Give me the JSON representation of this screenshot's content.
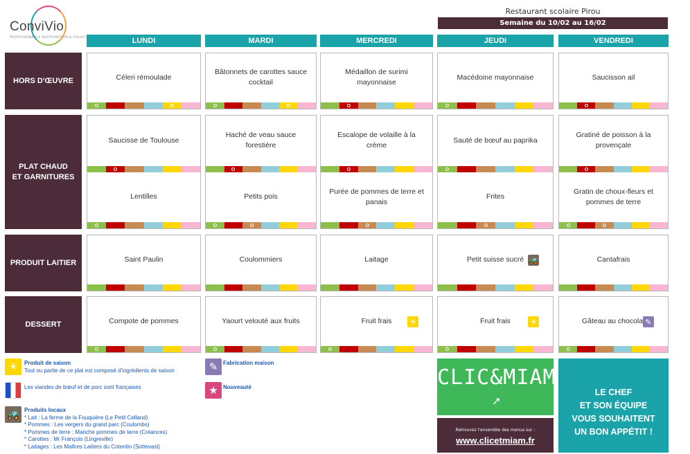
{
  "logo": {
    "name": "ConviVio",
    "tagline": "PROFESSIONNELS RESTAURATION & COLLECTIVITÉ"
  },
  "header": {
    "restaurant": "Restaurant scolaire Pirou",
    "week": "Semaine du 10/02 au 16/02"
  },
  "days": [
    "LUNDI",
    "MARDI",
    "MERCREDI",
    "JEUDI",
    "VENDREDI"
  ],
  "categories": {
    "hors_doeuvre": "HORS D'ŒUVRE",
    "plat_line1": "PLAT CHAUD",
    "plat_line2": "ET GARNITURES",
    "produit_laitier": "PRODUIT LAITIER",
    "dessert": "DESSERT"
  },
  "menu": {
    "hors_doeuvre": [
      "Céleri rémoulade",
      "Bâtonnets de carottes sauce cocktail",
      "Médaillon de surimi mayonnaise",
      "Macédoine mayonnaise",
      "Saucisson ail"
    ],
    "plat": [
      "Saucisse de Toulouse",
      "Haché de veau sauce forestière",
      "Escalope de volaille à la crème",
      "Sauté de bœuf au paprika",
      "Gratiné de poisson à la provençale"
    ],
    "garniture": [
      "Lentilles",
      "Petits pois",
      "Purée de pommes de terre et panais",
      "Frites",
      "Gratin de choux-fleurs et pommes de terre"
    ],
    "laitier": [
      "Saint Paulin",
      "Coulommiers",
      "Laitage",
      "Petit suisse sucré",
      "Cantafrais"
    ],
    "dessert": [
      "Compote de pommes",
      "Yaourt velouté aux fruits",
      "Fruit frais",
      "Fruit frais",
      "Gâteau au chocolat"
    ]
  },
  "strip_colors": {
    "green": "#8cc04a",
    "red": "#c00000",
    "brown": "#c68a52",
    "blue": "#92cddc",
    "yellow": "#ffd700",
    "pink": "#f7b6d2"
  },
  "icons": {
    "saison": "sun-icon",
    "local": "tractor-icon",
    "maison": "whisk-icon",
    "nouveaute": "star-icon",
    "francaise": "french-flag-icon",
    "cursor": "cursor-icon"
  },
  "legend": {
    "saison_title": "Produit de saison",
    "saison_text": "Tout ou partie de ce plat est composé d'ingrédients de saison",
    "viandes": "Les viandes de bœuf et de porc sont françaises",
    "locaux_title": "Produits locaux",
    "locaux_items": [
      "* Lait : La ferme de la Fouquière (Le Petit Celland)",
      "* Pommes : Les vergers du grand parc (Coulombs)",
      "* Pommes de terre : Manche pommes de terre (Créances)",
      "* Carottes : Mr François (Lingreville)",
      "* Laitages : Les Maîtres Laitiers du Cotentin (Sottevast)"
    ],
    "maison": "Fabrication maison",
    "nouveaute": "Nouveauté"
  },
  "promo": {
    "clic": "CLIC&MIAM!",
    "retrouvez": "Retrouvez l'ensemble des menus sur :",
    "url": "www.clicetmiam.fr",
    "chef_lines": [
      "LE CHEF",
      "ET SON ÉQUIPE",
      "VOUS SOUHAITENT",
      "UN BON APPÉTIT !"
    ]
  }
}
